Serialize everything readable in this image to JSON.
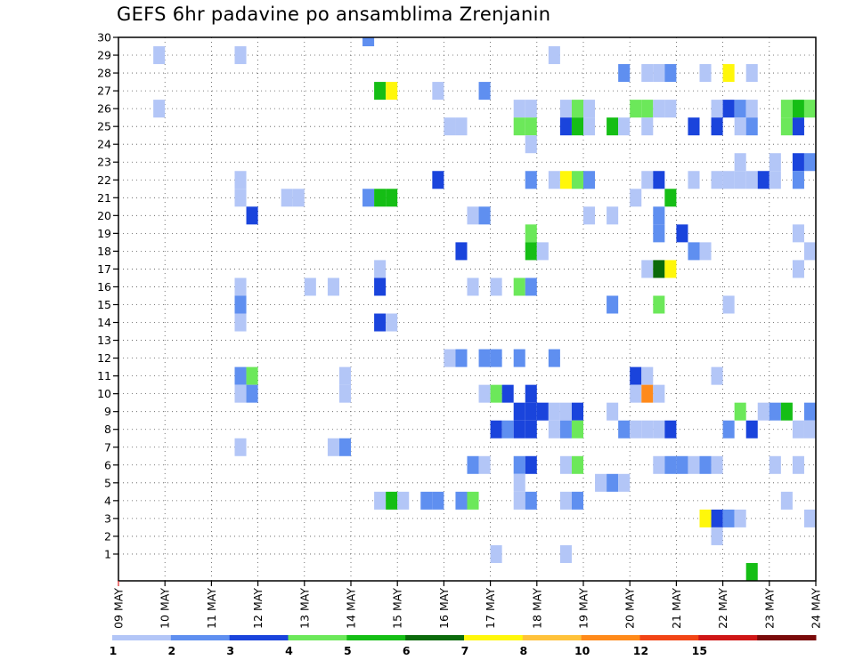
{
  "chart_data": {
    "type": "heatmap",
    "title": "GEFS 6hr padavine po ansamblima Zrenjanin",
    "xlabel": "",
    "ylabel": "",
    "x_tick_labels": [
      "09 MAY",
      "10 MAY",
      "11 MAY",
      "12 MAY",
      "13 MAY",
      "14 MAY",
      "15 MAY",
      "16 MAY",
      "17 MAY",
      "18 MAY",
      "19 MAY",
      "20 MAY",
      "21 MAY",
      "22 MAY",
      "23 MAY",
      "24 MAY"
    ],
    "y_tick_labels": [
      "1",
      "2",
      "3",
      "4",
      "5",
      "6",
      "7",
      "8",
      "9",
      "10",
      "11",
      "12",
      "13",
      "14",
      "15",
      "16",
      "17",
      "18",
      "19",
      "20",
      "21",
      "22",
      "23",
      "24",
      "25",
      "26",
      "27",
      "28",
      "29",
      "30"
    ],
    "ylim": [
      0,
      30
    ],
    "time_step_hours": 6,
    "time_steps": 60,
    "grid": true,
    "colorbar": {
      "levels": [
        "1",
        "2",
        "3",
        "4",
        "5",
        "6",
        "7",
        "8",
        "10",
        "12",
        "15",
        "20"
      ],
      "colors": [
        "#b3c6f7",
        "#5f8ff0",
        "#1a44dc",
        "#6ce85a",
        "#15be15",
        "#0b6a0b",
        "#fff70a",
        "#ffc23a",
        "#ff8a1a",
        "#f24516",
        "#cf1616",
        "#7a0a0a"
      ]
    },
    "cells": [
      [
        3,
        29,
        1
      ],
      [
        3,
        26,
        1
      ],
      [
        21,
        30,
        2
      ],
      [
        10,
        29,
        1
      ],
      [
        37,
        29,
        1
      ],
      [
        43,
        28,
        2
      ],
      [
        45,
        28,
        1
      ],
      [
        46,
        28,
        1
      ],
      [
        47,
        28,
        2
      ],
      [
        50,
        28,
        1
      ],
      [
        52,
        28,
        7
      ],
      [
        54,
        28,
        1
      ],
      [
        22,
        27,
        5
      ],
      [
        23,
        27,
        7
      ],
      [
        27,
        27,
        1
      ],
      [
        31,
        27,
        2
      ],
      [
        34,
        26,
        1
      ],
      [
        35,
        26,
        1
      ],
      [
        38,
        26,
        1
      ],
      [
        39,
        26,
        4
      ],
      [
        40,
        26,
        1
      ],
      [
        44,
        26,
        4
      ],
      [
        45,
        26,
        4
      ],
      [
        46,
        26,
        1
      ],
      [
        47,
        26,
        1
      ],
      [
        51,
        26,
        1
      ],
      [
        52,
        26,
        3
      ],
      [
        53,
        26,
        2
      ],
      [
        54,
        26,
        1
      ],
      [
        57,
        26,
        4
      ],
      [
        58,
        26,
        5
      ],
      [
        59,
        26,
        4
      ],
      [
        60,
        26,
        7
      ],
      [
        28,
        25,
        1
      ],
      [
        29,
        25,
        1
      ],
      [
        34,
        25,
        4
      ],
      [
        35,
        25,
        4
      ],
      [
        38,
        25,
        3
      ],
      [
        39,
        25,
        5
      ],
      [
        40,
        25,
        1
      ],
      [
        42,
        25,
        5
      ],
      [
        43,
        25,
        1
      ],
      [
        45,
        25,
        1
      ],
      [
        49,
        25,
        3
      ],
      [
        51,
        25,
        3
      ],
      [
        53,
        25,
        1
      ],
      [
        54,
        25,
        2
      ],
      [
        57,
        25,
        4
      ],
      [
        58,
        25,
        3
      ],
      [
        35,
        24,
        1
      ],
      [
        60,
        24,
        1
      ],
      [
        53,
        23,
        1
      ],
      [
        56,
        23,
        1
      ],
      [
        58,
        23,
        3
      ],
      [
        59,
        23,
        2
      ],
      [
        10,
        22,
        1
      ],
      [
        27,
        22,
        3
      ],
      [
        35,
        22,
        2
      ],
      [
        37,
        22,
        1
      ],
      [
        38,
        22,
        7
      ],
      [
        39,
        22,
        4
      ],
      [
        40,
        22,
        2
      ],
      [
        45,
        22,
        1
      ],
      [
        46,
        22,
        3
      ],
      [
        49,
        22,
        1
      ],
      [
        51,
        22,
        1
      ],
      [
        52,
        22,
        1
      ],
      [
        53,
        22,
        1
      ],
      [
        54,
        22,
        1
      ],
      [
        55,
        22,
        3
      ],
      [
        56,
        22,
        1
      ],
      [
        58,
        22,
        2
      ],
      [
        10,
        21,
        1
      ],
      [
        14,
        21,
        1
      ],
      [
        15,
        21,
        1
      ],
      [
        21,
        21,
        2
      ],
      [
        22,
        21,
        5
      ],
      [
        23,
        21,
        5
      ],
      [
        44,
        21,
        1
      ],
      [
        47,
        21,
        5
      ],
      [
        11,
        20,
        3
      ],
      [
        30,
        20,
        1
      ],
      [
        31,
        20,
        2
      ],
      [
        40,
        20,
        1
      ],
      [
        42,
        20,
        1
      ],
      [
        46,
        20,
        2
      ],
      [
        35,
        19,
        4
      ],
      [
        46,
        19,
        2
      ],
      [
        48,
        19,
        3
      ],
      [
        58,
        19,
        1
      ],
      [
        60,
        19,
        4
      ],
      [
        29,
        18,
        3
      ],
      [
        35,
        18,
        5
      ],
      [
        36,
        18,
        1
      ],
      [
        49,
        18,
        2
      ],
      [
        50,
        18,
        1
      ],
      [
        59,
        18,
        1
      ],
      [
        22,
        17,
        1
      ],
      [
        45,
        17,
        1
      ],
      [
        46,
        17,
        6
      ],
      [
        47,
        17,
        7
      ],
      [
        58,
        17,
        1
      ],
      [
        10,
        16,
        1
      ],
      [
        16,
        16,
        1
      ],
      [
        18,
        16,
        1
      ],
      [
        22,
        16,
        3
      ],
      [
        30,
        16,
        1
      ],
      [
        32,
        16,
        1
      ],
      [
        34,
        16,
        4
      ],
      [
        35,
        16,
        2
      ],
      [
        10,
        15,
        2
      ],
      [
        46,
        15,
        4
      ],
      [
        42,
        15,
        2
      ],
      [
        52,
        15,
        1
      ],
      [
        10,
        14,
        1
      ],
      [
        22,
        14,
        3
      ],
      [
        23,
        14,
        1
      ],
      [
        28,
        12,
        1
      ],
      [
        29,
        12,
        2
      ],
      [
        31,
        12,
        2
      ],
      [
        32,
        12,
        2
      ],
      [
        34,
        12,
        2
      ],
      [
        37,
        12,
        2
      ],
      [
        60,
        12,
        7
      ],
      [
        10,
        11,
        2
      ],
      [
        11,
        11,
        4
      ],
      [
        19,
        11,
        1
      ],
      [
        44,
        11,
        3
      ],
      [
        45,
        11,
        1
      ],
      [
        51,
        11,
        1
      ],
      [
        60,
        11,
        1
      ],
      [
        10,
        10,
        1
      ],
      [
        11,
        10,
        2
      ],
      [
        19,
        10,
        1
      ],
      [
        31,
        10,
        1
      ],
      [
        32,
        10,
        4
      ],
      [
        33,
        10,
        3
      ],
      [
        35,
        10,
        3
      ],
      [
        44,
        10,
        1
      ],
      [
        45,
        10,
        9
      ],
      [
        46,
        10,
        1
      ],
      [
        34,
        9,
        3
      ],
      [
        35,
        9,
        3
      ],
      [
        36,
        9,
        3
      ],
      [
        37,
        9,
        1
      ],
      [
        38,
        9,
        1
      ],
      [
        39,
        9,
        3
      ],
      [
        42,
        9,
        1
      ],
      [
        53,
        9,
        4
      ],
      [
        55,
        9,
        1
      ],
      [
        56,
        9,
        2
      ],
      [
        57,
        9,
        5
      ],
      [
        59,
        9,
        2
      ],
      [
        32,
        8,
        3
      ],
      [
        33,
        8,
        2
      ],
      [
        34,
        8,
        3
      ],
      [
        35,
        8,
        3
      ],
      [
        37,
        8,
        1
      ],
      [
        38,
        8,
        2
      ],
      [
        39,
        8,
        4
      ],
      [
        43,
        8,
        2
      ],
      [
        44,
        8,
        1
      ],
      [
        45,
        8,
        1
      ],
      [
        46,
        8,
        1
      ],
      [
        47,
        8,
        3
      ],
      [
        52,
        8,
        2
      ],
      [
        54,
        8,
        3
      ],
      [
        58,
        8,
        1
      ],
      [
        59,
        8,
        1
      ],
      [
        60,
        8,
        5
      ],
      [
        10,
        7,
        1
      ],
      [
        18,
        7,
        1
      ],
      [
        19,
        7,
        2
      ],
      [
        30,
        6,
        2
      ],
      [
        31,
        6,
        1
      ],
      [
        34,
        6,
        2
      ],
      [
        35,
        6,
        3
      ],
      [
        38,
        6,
        1
      ],
      [
        39,
        6,
        4
      ],
      [
        46,
        6,
        1
      ],
      [
        47,
        6,
        2
      ],
      [
        48,
        6,
        2
      ],
      [
        49,
        6,
        1
      ],
      [
        50,
        6,
        2
      ],
      [
        51,
        6,
        1
      ],
      [
        56,
        6,
        1
      ],
      [
        58,
        6,
        1
      ],
      [
        34,
        5,
        1
      ],
      [
        41,
        5,
        1
      ],
      [
        42,
        5,
        2
      ],
      [
        43,
        5,
        1
      ],
      [
        60,
        5,
        1
      ],
      [
        22,
        4,
        1
      ],
      [
        23,
        4,
        5
      ],
      [
        24,
        4,
        1
      ],
      [
        26,
        4,
        2
      ],
      [
        27,
        4,
        2
      ],
      [
        29,
        4,
        2
      ],
      [
        30,
        4,
        4
      ],
      [
        34,
        4,
        1
      ],
      [
        35,
        4,
        2
      ],
      [
        38,
        4,
        1
      ],
      [
        39,
        4,
        2
      ],
      [
        57,
        4,
        1
      ],
      [
        60,
        4,
        2
      ],
      [
        50,
        3,
        7
      ],
      [
        51,
        3,
        3
      ],
      [
        52,
        3,
        2
      ],
      [
        53,
        3,
        1
      ],
      [
        59,
        3,
        1
      ],
      [
        60,
        3,
        1
      ],
      [
        51,
        2,
        1
      ],
      [
        32,
        1,
        1
      ],
      [
        38,
        1,
        1
      ],
      [
        54,
        0,
        5
      ],
      [
        58,
        -1,
        1
      ]
    ]
  }
}
